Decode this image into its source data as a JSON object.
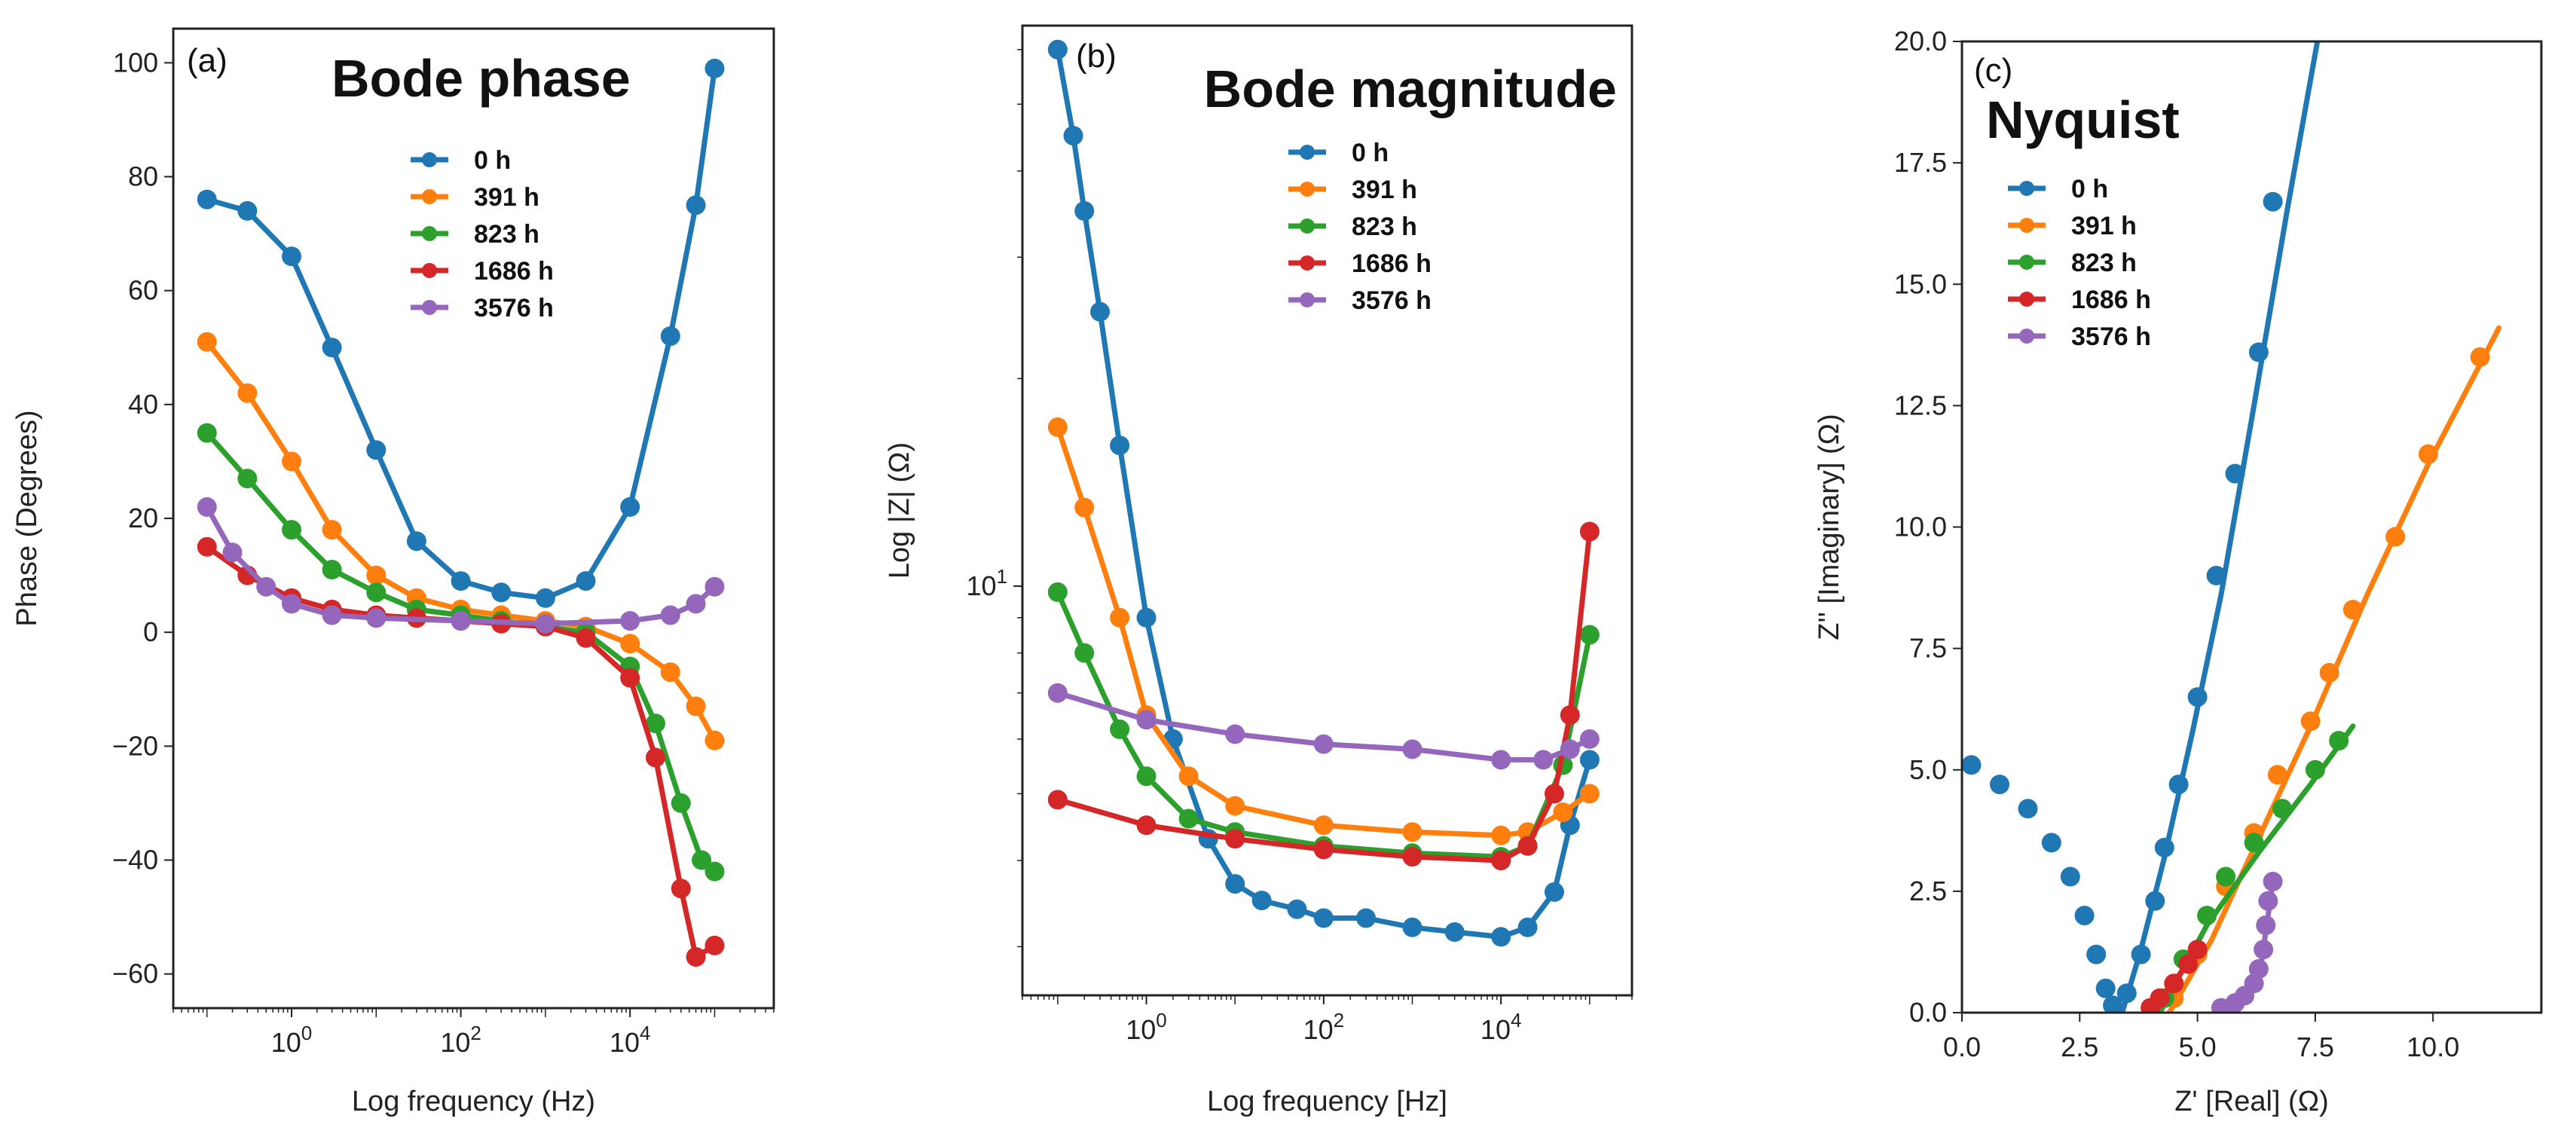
{
  "colors": {
    "c0": "#1f77b4",
    "c391": "#ff7f0e",
    "c823": "#2ca02c",
    "c1686": "#d62728",
    "c3576": "#9467bd"
  },
  "chart_data": [
    {
      "type": "line",
      "panel_label": "(a)",
      "title": "Bode phase",
      "xlabel": "Log frequency (Hz)",
      "ylabel": "Phase (Degrees)",
      "xscale": "log",
      "xlim": [
        0.04,
        500000
      ],
      "ylim": [
        -66,
        106
      ],
      "xticks": [
        {
          "v": 1,
          "b": "10",
          "e": "0"
        },
        {
          "v": 100,
          "b": "10",
          "e": "2"
        },
        {
          "v": 10000,
          "b": "10",
          "e": "4"
        }
      ],
      "yticks": [
        {
          "v": -60,
          "t": "−60"
        },
        {
          "v": -40,
          "t": "−40"
        },
        {
          "v": -20,
          "t": "−20"
        },
        {
          "v": 0,
          "t": "0"
        },
        {
          "v": 20,
          "t": "20"
        },
        {
          "v": 40,
          "t": "40"
        },
        {
          "v": 60,
          "t": "60"
        },
        {
          "v": 80,
          "t": "80"
        },
        {
          "v": 100,
          "t": "100"
        }
      ],
      "legend": {
        "position": "upper-center",
        "entries": [
          "0 h",
          "391 h",
          "823 h",
          "1686 h",
          "3576 h"
        ]
      },
      "series": [
        {
          "name": "0 h",
          "color": "#1f77b4",
          "points": [
            [
              0.1,
              76
            ],
            [
              0.3,
              74
            ],
            [
              1,
              66
            ],
            [
              3,
              50
            ],
            [
              10,
              32
            ],
            [
              30,
              16
            ],
            [
              100,
              9
            ],
            [
              300,
              7
            ],
            [
              1000,
              6
            ],
            [
              3000,
              9
            ],
            [
              10000,
              22
            ],
            [
              30000,
              52
            ],
            [
              60000,
              75
            ],
            [
              100000,
              99
            ]
          ]
        },
        {
          "name": "391 h",
          "color": "#ff7f0e",
          "points": [
            [
              0.1,
              51
            ],
            [
              0.3,
              42
            ],
            [
              1,
              30
            ],
            [
              3,
              18
            ],
            [
              10,
              10
            ],
            [
              30,
              6
            ],
            [
              100,
              4
            ],
            [
              300,
              3
            ],
            [
              1000,
              2
            ],
            [
              3000,
              1
            ],
            [
              10000,
              -2
            ],
            [
              30000,
              -7
            ],
            [
              60000,
              -13
            ],
            [
              100000,
              -19
            ]
          ]
        },
        {
          "name": "823 h",
          "color": "#2ca02c",
          "points": [
            [
              0.1,
              35
            ],
            [
              0.3,
              27
            ],
            [
              1,
              18
            ],
            [
              3,
              11
            ],
            [
              10,
              7
            ],
            [
              30,
              4
            ],
            [
              100,
              3
            ],
            [
              300,
              2
            ],
            [
              1000,
              1
            ],
            [
              3000,
              0
            ],
            [
              10000,
              -6
            ],
            [
              20000,
              -16
            ],
            [
              40000,
              -30
            ],
            [
              70000,
              -40
            ],
            [
              100000,
              -42
            ]
          ]
        },
        {
          "name": "1686 h",
          "color": "#d62728",
          "points": [
            [
              0.1,
              15
            ],
            [
              0.3,
              10
            ],
            [
              1,
              6
            ],
            [
              3,
              4
            ],
            [
              10,
              3
            ],
            [
              30,
              2.5
            ],
            [
              100,
              2
            ],
            [
              300,
              1.5
            ],
            [
              1000,
              1
            ],
            [
              3000,
              -1
            ],
            [
              10000,
              -8
            ],
            [
              20000,
              -22
            ],
            [
              40000,
              -45
            ],
            [
              60000,
              -57
            ],
            [
              100000,
              -55
            ]
          ]
        },
        {
          "name": "3576 h",
          "color": "#9467bd",
          "points": [
            [
              0.1,
              22
            ],
            [
              0.2,
              14
            ],
            [
              0.5,
              8
            ],
            [
              1,
              5
            ],
            [
              3,
              3
            ],
            [
              10,
              2.5
            ],
            [
              100,
              2
            ],
            [
              1000,
              1.5
            ],
            [
              10000,
              2
            ],
            [
              30000,
              3
            ],
            [
              60000,
              5
            ],
            [
              100000,
              8
            ]
          ]
        }
      ]
    },
    {
      "type": "line",
      "panel_label": "(b)",
      "title": "Bode magnitude",
      "xlabel": "Log frequency [Hz]",
      "ylabel": "Log |Z| (Ω)",
      "xscale": "log",
      "yscale": "log",
      "xlim": [
        0.04,
        300000
      ],
      "ylim": [
        2.55,
        65
      ],
      "xticks": [
        {
          "v": 1,
          "b": "10",
          "e": "0"
        },
        {
          "v": 100,
          "b": "10",
          "e": "2"
        },
        {
          "v": 10000,
          "b": "10",
          "e": "4"
        }
      ],
      "yticks": [
        {
          "v": 10,
          "b": "10",
          "e": "1"
        }
      ],
      "yminor": [
        3,
        4,
        5,
        6,
        7,
        8,
        9,
        20,
        30,
        40,
        50,
        60
      ],
      "legend": {
        "position": "upper-right",
        "entries": [
          "0 h",
          "391 h",
          "823 h",
          "1686 h",
          "3576 h"
        ]
      },
      "series": [
        {
          "name": "0 h",
          "color": "#1f77b4",
          "points": [
            [
              0.1,
              60
            ],
            [
              0.15,
              45
            ],
            [
              0.2,
              35
            ],
            [
              0.3,
              25
            ],
            [
              0.5,
              16
            ],
            [
              1,
              9
            ],
            [
              2,
              6
            ],
            [
              5,
              4.3
            ],
            [
              10,
              3.7
            ],
            [
              20,
              3.5
            ],
            [
              50,
              3.4
            ],
            [
              100,
              3.3
            ],
            [
              300,
              3.3
            ],
            [
              1000,
              3.2
            ],
            [
              3000,
              3.15
            ],
            [
              10000,
              3.1
            ],
            [
              20000,
              3.2
            ],
            [
              40000,
              3.6
            ],
            [
              60000,
              4.5
            ],
            [
              100000,
              5.6
            ]
          ]
        },
        {
          "name": "391 h",
          "color": "#ff7f0e",
          "points": [
            [
              0.1,
              17
            ],
            [
              0.2,
              13
            ],
            [
              0.5,
              9
            ],
            [
              1,
              6.5
            ],
            [
              3,
              5.3
            ],
            [
              10,
              4.8
            ],
            [
              100,
              4.5
            ],
            [
              1000,
              4.4
            ],
            [
              10000,
              4.35
            ],
            [
              20000,
              4.4
            ],
            [
              50000,
              4.7
            ],
            [
              100000,
              5
            ]
          ]
        },
        {
          "name": "823 h",
          "color": "#2ca02c",
          "points": [
            [
              0.1,
              9.8
            ],
            [
              0.2,
              8
            ],
            [
              0.5,
              6.2
            ],
            [
              1,
              5.3
            ],
            [
              3,
              4.6
            ],
            [
              10,
              4.4
            ],
            [
              100,
              4.2
            ],
            [
              1000,
              4.1
            ],
            [
              10000,
              4.05
            ],
            [
              20000,
              4.2
            ],
            [
              50000,
              5.5
            ],
            [
              100000,
              8.5
            ]
          ]
        },
        {
          "name": "1686 h",
          "color": "#d62728",
          "points": [
            [
              0.1,
              4.9
            ],
            [
              1,
              4.5
            ],
            [
              10,
              4.3
            ],
            [
              100,
              4.15
            ],
            [
              1000,
              4.05
            ],
            [
              10000,
              4
            ],
            [
              20000,
              4.2
            ],
            [
              40000,
              5
            ],
            [
              60000,
              6.5
            ],
            [
              100000,
              12
            ]
          ]
        },
        {
          "name": "3576 h",
          "color": "#9467bd",
          "points": [
            [
              0.1,
              7
            ],
            [
              1,
              6.4
            ],
            [
              10,
              6.1
            ],
            [
              100,
              5.9
            ],
            [
              1000,
              5.8
            ],
            [
              10000,
              5.6
            ],
            [
              30000,
              5.6
            ],
            [
              60000,
              5.8
            ],
            [
              100000,
              6
            ]
          ]
        }
      ]
    },
    {
      "type": "scatter",
      "panel_label": "(c)",
      "title": "Nyquist",
      "xlabel": "Z' [Real] (Ω)",
      "ylabel": "Z'' [Imaginary] (Ω)",
      "xlim": [
        0,
        12.3
      ],
      "ylim": [
        0,
        20
      ],
      "xticks": [
        {
          "v": 0,
          "t": "0.0"
        },
        {
          "v": 2.5,
          "t": "2.5"
        },
        {
          "v": 5,
          "t": "5.0"
        },
        {
          "v": 7.5,
          "t": "7.5"
        },
        {
          "v": 10,
          "t": "10.0"
        }
      ],
      "yticks": [
        {
          "v": 0,
          "t": "0.0"
        },
        {
          "v": 2.5,
          "t": "2.5"
        },
        {
          "v": 5,
          "t": "5.0"
        },
        {
          "v": 7.5,
          "t": "7.5"
        },
        {
          "v": 10,
          "t": "10.0"
        },
        {
          "v": 12.5,
          "t": "12.5"
        },
        {
          "v": 15,
          "t": "15.0"
        },
        {
          "v": 17.5,
          "t": "17.5"
        },
        {
          "v": 20,
          "t": "20.0"
        }
      ],
      "legend": {
        "position": "upper-left",
        "entries": [
          "0 h",
          "391 h",
          "823 h",
          "1686 h",
          "3576 h"
        ]
      },
      "series": [
        {
          "name": "0 h",
          "color": "#1f77b4",
          "points": [
            [
              0.2,
              5.1
            ],
            [
              0.8,
              4.7
            ],
            [
              1.4,
              4.2
            ],
            [
              1.9,
              3.5
            ],
            [
              2.3,
              2.8
            ],
            [
              2.6,
              2.0
            ],
            [
              2.85,
              1.2
            ],
            [
              3.05,
              0.5
            ],
            [
              3.2,
              0.15
            ],
            [
              3.5,
              0.4
            ],
            [
              3.8,
              1.2
            ],
            [
              4.1,
              2.3
            ],
            [
              4.3,
              3.4
            ],
            [
              4.6,
              4.7
            ],
            [
              5.0,
              6.5
            ],
            [
              5.4,
              9.0
            ],
            [
              5.8,
              11.1
            ],
            [
              6.3,
              13.6
            ],
            [
              6.6,
              16.7
            ]
          ],
          "fit": [
            [
              3.4,
              0
            ],
            [
              3.8,
              1.3
            ],
            [
              4.3,
              3.2
            ],
            [
              4.9,
              5.8
            ],
            [
              5.5,
              8.6
            ],
            [
              6.2,
              12.5
            ],
            [
              6.9,
              16.5
            ],
            [
              7.6,
              20.3
            ]
          ]
        },
        {
          "name": "391 h",
          "color": "#ff7f0e",
          "points": [
            [
              4.5,
              0.3
            ],
            [
              5.0,
              1.2
            ],
            [
              5.6,
              2.6
            ],
            [
              6.2,
              3.7
            ],
            [
              6.7,
              4.9
            ],
            [
              7.4,
              6.0
            ],
            [
              7.8,
              7.0
            ],
            [
              8.3,
              8.3
            ],
            [
              9.2,
              9.8
            ],
            [
              9.9,
              11.5
            ],
            [
              11.0,
              13.5
            ]
          ],
          "fit": [
            [
              4.4,
              0
            ],
            [
              5.3,
              1.5
            ],
            [
              6.3,
              3.6
            ],
            [
              7.4,
              5.9
            ],
            [
              8.6,
              8.6
            ],
            [
              9.9,
              11.3
            ],
            [
              11.4,
              14.1
            ]
          ]
        },
        {
          "name": "823 h",
          "color": "#2ca02c",
          "points": [
            [
              4.3,
              0.3
            ],
            [
              4.7,
              1.1
            ],
            [
              5.2,
              2.0
            ],
            [
              5.6,
              2.8
            ],
            [
              6.2,
              3.5
            ],
            [
              6.8,
              4.2
            ],
            [
              7.5,
              5.0
            ],
            [
              8.0,
              5.6
            ]
          ],
          "fit": [
            [
              4.2,
              0
            ],
            [
              5.2,
              1.8
            ],
            [
              6.3,
              3.3
            ],
            [
              7.4,
              4.7
            ],
            [
              8.3,
              5.9
            ]
          ]
        },
        {
          "name": "1686 h",
          "color": "#d62728",
          "points": [
            [
              4.0,
              0.1
            ],
            [
              4.2,
              0.3
            ],
            [
              4.5,
              0.6
            ],
            [
              4.8,
              1.0
            ],
            [
              5.0,
              1.3
            ]
          ],
          "fit": [
            [
              3.9,
              0
            ],
            [
              4.4,
              0.5
            ],
            [
              5.0,
              1.3
            ]
          ]
        },
        {
          "name": "3576 h",
          "color": "#9467bd",
          "points": [
            [
              5.5,
              0.1
            ],
            [
              5.8,
              0.2
            ],
            [
              6.0,
              0.35
            ],
            [
              6.2,
              0.6
            ],
            [
              6.3,
              0.9
            ],
            [
              6.4,
              1.3
            ],
            [
              6.45,
              1.8
            ],
            [
              6.5,
              2.3
            ],
            [
              6.6,
              2.7
            ]
          ],
          "fit": [
            [
              5.5,
              0.05
            ],
            [
              6.1,
              0.4
            ],
            [
              6.35,
              1.0
            ],
            [
              6.5,
              2.0
            ],
            [
              6.6,
              2.7
            ]
          ]
        }
      ]
    }
  ]
}
